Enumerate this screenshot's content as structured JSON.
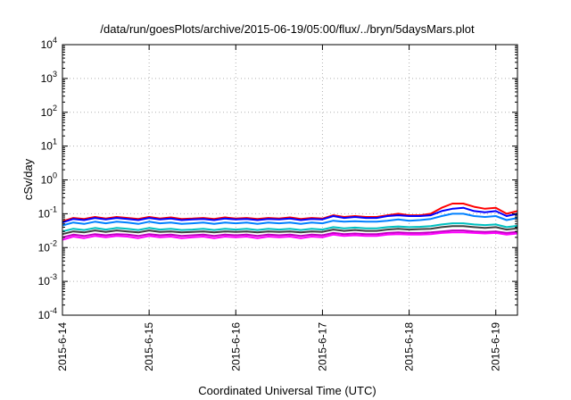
{
  "chart_data": {
    "type": "line",
    "title": "/data/run/goesPlots/archive/2015-06-19/05:00/flux/../bryn/5daysMars.plot",
    "xlabel": "Coordinated Universal Time (UTC)",
    "ylabel": "cSv/day",
    "y_scale": "log",
    "ylim": [
      0.0001,
      10000
    ],
    "y_ticks": [
      {
        "value": 0.0001,
        "base": "10",
        "exp": "-4"
      },
      {
        "value": 0.001,
        "base": "10",
        "exp": "-3"
      },
      {
        "value": 0.01,
        "base": "10",
        "exp": "-2"
      },
      {
        "value": 0.1,
        "base": "10",
        "exp": "-1"
      },
      {
        "value": 1,
        "base": "10",
        "exp": "0"
      },
      {
        "value": 10,
        "base": "10",
        "exp": "1"
      },
      {
        "value": 100,
        "base": "10",
        "exp": "2"
      },
      {
        "value": 1000,
        "base": "10",
        "exp": "3"
      },
      {
        "value": 10000,
        "base": "10",
        "exp": "4"
      }
    ],
    "xlim": [
      "2015-06-14",
      "2015-06-19 06:00"
    ],
    "x_ticks": [
      "2015-6-14",
      "2015-6-15",
      "2015-6-16",
      "2015-6-17",
      "2015-6-18",
      "2015-6-19"
    ],
    "grid": true,
    "x_time_of_day_hours": [
      0,
      3,
      6,
      9,
      12,
      15,
      18,
      21,
      24,
      27,
      30,
      33,
      36,
      39,
      42,
      45,
      48,
      51,
      54,
      57,
      60,
      63,
      66,
      69,
      72,
      75,
      78,
      81,
      84,
      87,
      90,
      93,
      96,
      99,
      102,
      105,
      108,
      111,
      114,
      117,
      120,
      123,
      126
    ],
    "series": [
      {
        "color": "#ff0000",
        "values": [
          0.06,
          0.075,
          0.07,
          0.08,
          0.072,
          0.08,
          0.075,
          0.07,
          0.08,
          0.072,
          0.078,
          0.07,
          0.072,
          0.075,
          0.07,
          0.078,
          0.072,
          0.075,
          0.07,
          0.075,
          0.072,
          0.078,
          0.07,
          0.075,
          0.072,
          0.09,
          0.08,
          0.085,
          0.08,
          0.08,
          0.09,
          0.1,
          0.09,
          0.09,
          0.1,
          0.15,
          0.2,
          0.2,
          0.16,
          0.14,
          0.15,
          0.1,
          0.12
        ]
      },
      {
        "color": "#0000ff",
        "values": [
          0.055,
          0.07,
          0.065,
          0.075,
          0.068,
          0.075,
          0.07,
          0.065,
          0.075,
          0.068,
          0.072,
          0.065,
          0.068,
          0.07,
          0.065,
          0.072,
          0.068,
          0.07,
          0.065,
          0.07,
          0.068,
          0.072,
          0.065,
          0.07,
          0.068,
          0.085,
          0.075,
          0.08,
          0.075,
          0.075,
          0.085,
          0.09,
          0.085,
          0.085,
          0.09,
          0.12,
          0.14,
          0.15,
          0.12,
          0.11,
          0.12,
          0.085,
          0.1
        ]
      },
      {
        "color": "#0080ff",
        "values": [
          0.045,
          0.055,
          0.05,
          0.058,
          0.052,
          0.058,
          0.055,
          0.05,
          0.058,
          0.052,
          0.055,
          0.05,
          0.052,
          0.055,
          0.05,
          0.055,
          0.052,
          0.055,
          0.05,
          0.055,
          0.052,
          0.055,
          0.05,
          0.055,
          0.052,
          0.062,
          0.058,
          0.06,
          0.058,
          0.058,
          0.062,
          0.068,
          0.062,
          0.065,
          0.07,
          0.085,
          0.1,
          0.1,
          0.085,
          0.08,
          0.085,
          0.065,
          0.075
        ]
      },
      {
        "color": "#00c0c0",
        "values": [
          0.03,
          0.036,
          0.033,
          0.038,
          0.034,
          0.038,
          0.036,
          0.033,
          0.038,
          0.034,
          0.036,
          0.033,
          0.034,
          0.036,
          0.033,
          0.036,
          0.034,
          0.036,
          0.033,
          0.036,
          0.034,
          0.036,
          0.033,
          0.036,
          0.034,
          0.04,
          0.037,
          0.039,
          0.037,
          0.037,
          0.04,
          0.042,
          0.04,
          0.041,
          0.043,
          0.048,
          0.052,
          0.052,
          0.048,
          0.046,
          0.048,
          0.04,
          0.044
        ]
      },
      {
        "color": "#404040",
        "values": [
          0.025,
          0.03,
          0.028,
          0.032,
          0.029,
          0.032,
          0.03,
          0.028,
          0.032,
          0.029,
          0.03,
          0.028,
          0.029,
          0.03,
          0.028,
          0.03,
          0.029,
          0.03,
          0.028,
          0.03,
          0.029,
          0.03,
          0.028,
          0.03,
          0.029,
          0.034,
          0.031,
          0.033,
          0.031,
          0.031,
          0.034,
          0.036,
          0.034,
          0.035,
          0.036,
          0.04,
          0.043,
          0.043,
          0.04,
          0.038,
          0.04,
          0.034,
          0.037
        ]
      },
      {
        "color": "#c000c0",
        "values": [
          0.02,
          0.024,
          0.022,
          0.025,
          0.023,
          0.025,
          0.024,
          0.022,
          0.025,
          0.023,
          0.024,
          0.022,
          0.023,
          0.024,
          0.022,
          0.024,
          0.023,
          0.024,
          0.022,
          0.024,
          0.023,
          0.024,
          0.022,
          0.024,
          0.023,
          0.027,
          0.025,
          0.026,
          0.025,
          0.025,
          0.027,
          0.028,
          0.027,
          0.027,
          0.028,
          0.03,
          0.032,
          0.032,
          0.03,
          0.029,
          0.03,
          0.027,
          0.029
        ]
      },
      {
        "color": "#ff00ff",
        "values": [
          0.017,
          0.021,
          0.019,
          0.022,
          0.02,
          0.022,
          0.021,
          0.019,
          0.022,
          0.02,
          0.021,
          0.019,
          0.02,
          0.021,
          0.019,
          0.021,
          0.02,
          0.021,
          0.019,
          0.021,
          0.02,
          0.021,
          0.019,
          0.021,
          0.02,
          0.024,
          0.022,
          0.023,
          0.022,
          0.022,
          0.024,
          0.025,
          0.024,
          0.024,
          0.025,
          0.027,
          0.028,
          0.028,
          0.027,
          0.026,
          0.027,
          0.024,
          0.026
        ]
      }
    ]
  }
}
